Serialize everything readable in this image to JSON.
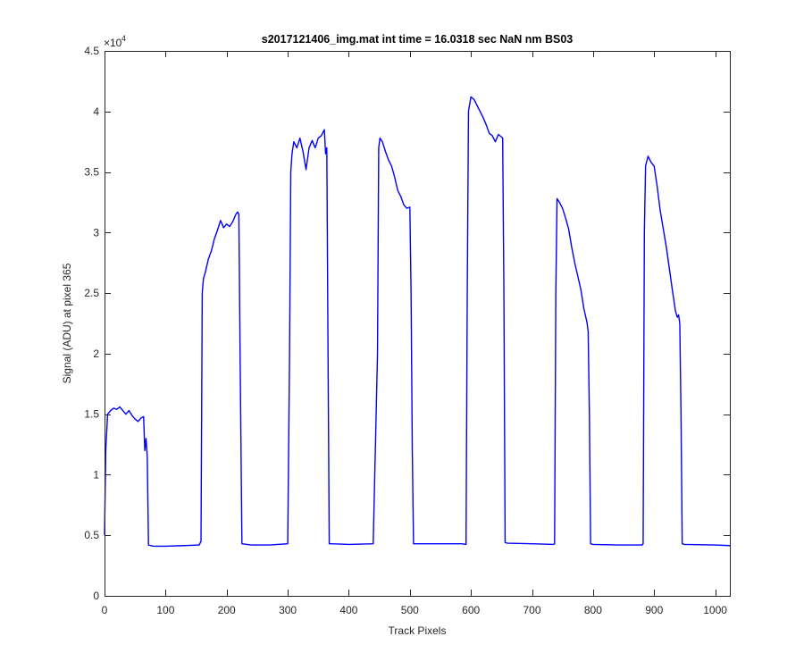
{
  "chart_data": {
    "type": "line",
    "title": "s2017121406_img.mat int time = 16.0318 sec  NaN nm BS03",
    "xlabel": "Track Pixels",
    "ylabel": "Signal (ADU) at pixel 365",
    "exponent_label": "×10",
    "exponent_power": "4",
    "xlim": [
      0,
      1024
    ],
    "ylim": [
      0,
      45000
    ],
    "xticks": [
      0,
      100,
      200,
      300,
      400,
      500,
      600,
      700,
      800,
      900,
      1000
    ],
    "xtick_labels": [
      "0",
      "100",
      "200",
      "300",
      "400",
      "500",
      "600",
      "700",
      "800",
      "900",
      "1000"
    ],
    "yticks": [
      0,
      5000,
      10000,
      15000,
      20000,
      25000,
      30000,
      35000,
      40000,
      45000
    ],
    "ytick_labels": [
      "0",
      "0.5",
      "1",
      "1.5",
      "2",
      "2.5",
      "3",
      "3.5",
      "4",
      "4.5"
    ],
    "grid": false,
    "line_color": "#0000ff",
    "series": [
      {
        "x": [
          0,
          2,
          5,
          10,
          15,
          20,
          25,
          30,
          35,
          40,
          45,
          50,
          55,
          60,
          64,
          66,
          68,
          70,
          72,
          80,
          100,
          130,
          155,
          158,
          160,
          162,
          165,
          170,
          175,
          180,
          185,
          190,
          195,
          200,
          205,
          210,
          215,
          218,
          220,
          222,
          225,
          240,
          270,
          300,
          303,
          305,
          307,
          310,
          315,
          320,
          325,
          330,
          335,
          340,
          345,
          350,
          355,
          360,
          362,
          364,
          366,
          368,
          370,
          400,
          440,
          447,
          449,
          451,
          455,
          460,
          465,
          470,
          475,
          480,
          485,
          490,
          495,
          500,
          502,
          504,
          506,
          510,
          540,
          585,
          592,
          594,
          596,
          600,
          605,
          610,
          615,
          620,
          625,
          630,
          635,
          640,
          645,
          650,
          652,
          654,
          656,
          660,
          700,
          735,
          737,
          739,
          741,
          745,
          750,
          755,
          760,
          765,
          770,
          775,
          780,
          785,
          790,
          792,
          794,
          796,
          800,
          840,
          880,
          882,
          884,
          886,
          890,
          895,
          900,
          905,
          910,
          915,
          920,
          925,
          930,
          935,
          938,
          940,
          942,
          944,
          946,
          950,
          1000,
          1024
        ],
        "y": [
          5000,
          12000,
          15000,
          15300,
          15500,
          15400,
          15600,
          15300,
          15000,
          15300,
          14900,
          14600,
          14400,
          14700,
          14800,
          12000,
          13000,
          11500,
          4200,
          4100,
          4100,
          4150,
          4200,
          4500,
          25000,
          26200,
          26700,
          27800,
          28500,
          29500,
          30200,
          31000,
          30400,
          30700,
          30500,
          30900,
          31500,
          31700,
          31500,
          20000,
          4300,
          4200,
          4200,
          4300,
          20000,
          35000,
          36500,
          37500,
          37000,
          37800,
          36700,
          35200,
          37000,
          37600,
          37000,
          37800,
          38000,
          38500,
          36500,
          37000,
          20000,
          4300,
          4300,
          4250,
          4300,
          20000,
          37000,
          37800,
          37500,
          36700,
          36000,
          35500,
          34600,
          33500,
          33000,
          32300,
          32000,
          32100,
          25000,
          12000,
          4300,
          4300,
          4300,
          4300,
          4250,
          25000,
          40000,
          41200,
          41000,
          40500,
          40000,
          39500,
          38900,
          38200,
          38000,
          37500,
          38100,
          37900,
          37800,
          25000,
          4400,
          4350,
          4300,
          4250,
          4300,
          25000,
          32800,
          32500,
          32000,
          31200,
          30300,
          28800,
          27500,
          26400,
          25300,
          23700,
          22600,
          21800,
          15000,
          4300,
          4250,
          4200,
          4200,
          4300,
          30000,
          35500,
          36300,
          35800,
          35500,
          33800,
          31800,
          30300,
          28800,
          27000,
          25200,
          23500,
          23000,
          23200,
          22500,
          15000,
          4300,
          4250,
          4200,
          4150
        ]
      }
    ]
  }
}
